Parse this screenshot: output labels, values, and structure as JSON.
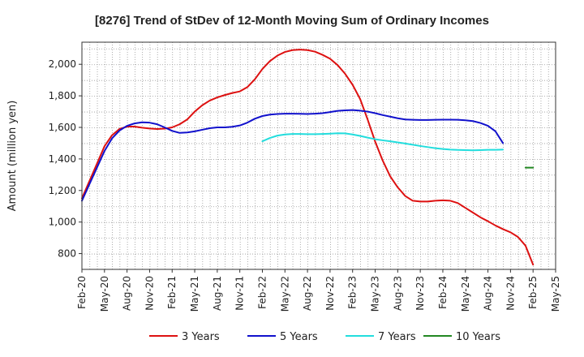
{
  "chart_data": {
    "type": "line",
    "title": "[8276]  Trend of StDev of 12-Month Moving Sum of Ordinary Incomes",
    "xlabel": "",
    "ylabel": "Amount (million yen)",
    "ylim": [
      700,
      2140
    ],
    "yticks": [
      800,
      1000,
      1200,
      1400,
      1600,
      1800,
      2000
    ],
    "ytick_labels": [
      "800",
      "1,000",
      "1,200",
      "1,400",
      "1,600",
      "1,800",
      "2,000"
    ],
    "x_range": [
      0,
      63
    ],
    "xticks": [
      {
        "i": 0,
        "label": "Feb-20"
      },
      {
        "i": 3,
        "label": "May-20"
      },
      {
        "i": 6,
        "label": "Aug-20"
      },
      {
        "i": 9,
        "label": "Nov-20"
      },
      {
        "i": 12,
        "label": "Feb-21"
      },
      {
        "i": 15,
        "label": "May-21"
      },
      {
        "i": 18,
        "label": "Aug-21"
      },
      {
        "i": 21,
        "label": "Nov-21"
      },
      {
        "i": 24,
        "label": "Feb-22"
      },
      {
        "i": 27,
        "label": "May-22"
      },
      {
        "i": 30,
        "label": "Aug-22"
      },
      {
        "i": 33,
        "label": "Nov-22"
      },
      {
        "i": 36,
        "label": "Feb-23"
      },
      {
        "i": 39,
        "label": "May-23"
      },
      {
        "i": 42,
        "label": "Aug-23"
      },
      {
        "i": 45,
        "label": "Nov-23"
      },
      {
        "i": 48,
        "label": "Feb-24"
      },
      {
        "i": 51,
        "label": "May-24"
      },
      {
        "i": 54,
        "label": "Aug-24"
      },
      {
        "i": 57,
        "label": "Nov-24"
      },
      {
        "i": 60,
        "label": "Feb-25"
      },
      {
        "i": 63,
        "label": "May-25"
      }
    ],
    "grid": true,
    "legend_position": "bottom",
    "series": [
      {
        "name": "3 Years",
        "color": "#dd1111",
        "start": 0,
        "values": [
          1150,
          1260,
          1370,
          1480,
          1550,
          1590,
          1605,
          1605,
          1598,
          1593,
          1590,
          1592,
          1600,
          1620,
          1650,
          1700,
          1740,
          1770,
          1790,
          1805,
          1818,
          1828,
          1855,
          1905,
          1970,
          2020,
          2055,
          2078,
          2090,
          2093,
          2090,
          2080,
          2060,
          2035,
          1995,
          1940,
          1870,
          1780,
          1650,
          1510,
          1390,
          1290,
          1220,
          1165,
          1135,
          1130,
          1130,
          1135,
          1138,
          1135,
          1120,
          1090,
          1060,
          1030,
          1005,
          978,
          955,
          935,
          905,
          850,
          730
        ]
      },
      {
        "name": "5 Years",
        "color": "#1111cc",
        "start": 0,
        "values": [
          1135,
          1240,
          1345,
          1450,
          1530,
          1580,
          1610,
          1625,
          1632,
          1630,
          1620,
          1600,
          1578,
          1565,
          1568,
          1575,
          1585,
          1595,
          1600,
          1600,
          1604,
          1612,
          1630,
          1655,
          1672,
          1681,
          1685,
          1687,
          1687,
          1686,
          1685,
          1687,
          1690,
          1697,
          1705,
          1708,
          1710,
          1706,
          1700,
          1690,
          1678,
          1668,
          1658,
          1650,
          1648,
          1647,
          1647,
          1648,
          1649,
          1649,
          1648,
          1645,
          1640,
          1628,
          1610,
          1575,
          1500
        ]
      },
      {
        "name": "7 Years",
        "color": "#22dddd",
        "start": 24,
        "values": [
          1512,
          1533,
          1548,
          1555,
          1558,
          1558,
          1557,
          1557,
          1558,
          1560,
          1563,
          1562,
          1555,
          1546,
          1535,
          1525,
          1518,
          1512,
          1505,
          1498,
          1490,
          1482,
          1475,
          1468,
          1463,
          1459,
          1457,
          1456,
          1455,
          1456,
          1458,
          1458,
          1459
        ]
      },
      {
        "name": "10 Years",
        "color": "#228822",
        "start": 59,
        "values": [
          1345,
          1345
        ]
      }
    ]
  }
}
